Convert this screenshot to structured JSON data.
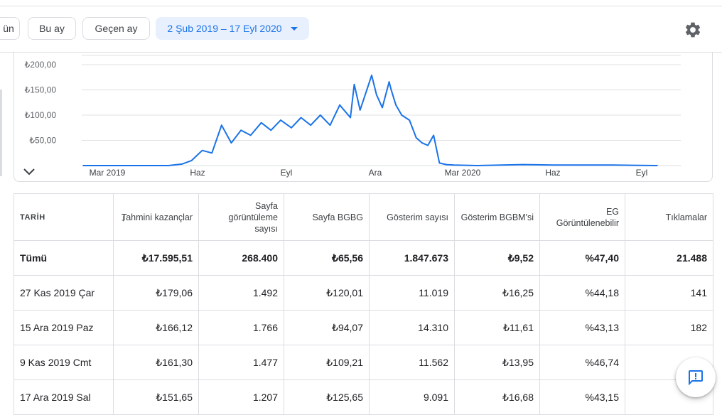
{
  "toolbar": {
    "chips": [
      {
        "label": "ün",
        "selected": false
      },
      {
        "label": "Bu ay",
        "selected": false
      },
      {
        "label": "Geçen ay",
        "selected": false
      }
    ],
    "date_range": "2 Şub 2019 – 17 Eyl 2020"
  },
  "colors": {
    "accent": "#1a73e8",
    "line": "#1a73e8",
    "grid": "#e0e0e0",
    "selected_chip_bg": "#e8f0fe"
  },
  "icons": {
    "settings": "gear-icon",
    "expand": "chevron-down-icon",
    "feedback": "feedback-icon",
    "sort": "arrow-down-icon"
  },
  "chart_data": {
    "type": "line",
    "y_ticks": [
      "₺200,00",
      "₺150,00",
      "₺100,00",
      "₺50,00"
    ],
    "x_ticks": [
      "Mar 2019",
      "Haz",
      "Eyl",
      "Ara",
      "Mar 2020",
      "Haz",
      "Eyl"
    ],
    "ylim": [
      0,
      200
    ],
    "grid": true,
    "series": [
      {
        "x": [
          "2019-02-02",
          "2019-03-01",
          "2019-04-15",
          "2019-05-01",
          "2019-05-15",
          "2019-05-25",
          "2019-06-05",
          "2019-06-15",
          "2019-06-25",
          "2019-07-05",
          "2019-07-15",
          "2019-07-25",
          "2019-08-05",
          "2019-08-15",
          "2019-08-25",
          "2019-09-05",
          "2019-09-15",
          "2019-09-25",
          "2019-10-05",
          "2019-10-15",
          "2019-10-25",
          "2019-11-05",
          "2019-11-09",
          "2019-11-15",
          "2019-11-22",
          "2019-11-27",
          "2019-12-02",
          "2019-12-08",
          "2019-12-15",
          "2019-12-17",
          "2019-12-22",
          "2019-12-28",
          "2020-01-05",
          "2020-01-12",
          "2020-01-18",
          "2020-01-24",
          "2020-01-30",
          "2020-02-05",
          "2020-02-12",
          "2020-02-20",
          "2020-03-15",
          "2020-05-01",
          "2020-06-01",
          "2020-07-01",
          "2020-08-01",
          "2020-09-17"
        ],
        "values": [
          0,
          0,
          0,
          0,
          3,
          10,
          30,
          25,
          80,
          45,
          70,
          60,
          85,
          70,
          90,
          75,
          95,
          80,
          100,
          80,
          120,
          95,
          161,
          110,
          150,
          179,
          140,
          115,
          166,
          151,
          120,
          100,
          90,
          55,
          45,
          40,
          60,
          5,
          2,
          1,
          0,
          2,
          1,
          1,
          1,
          0
        ]
      }
    ]
  },
  "table": {
    "columns": [
      {
        "label": "TARİH"
      },
      {
        "label": "Tahmini kazançlar"
      },
      {
        "label": "Sayfa görüntüleme sayısı"
      },
      {
        "label": "Sayfa BGBG"
      },
      {
        "label": "Gösterim sayısı"
      },
      {
        "label": "Gösterim BGBM'si"
      },
      {
        "label": "EG Görüntülenebilir"
      },
      {
        "label": "Tıklamalar"
      }
    ],
    "total": [
      "Tümü",
      "₺17.595,51",
      "268.400",
      "₺65,56",
      "1.847.673",
      "₺9,52",
      "%47,40",
      "21.488"
    ],
    "rows": [
      [
        "27 Kas 2019 Çar",
        "₺179,06",
        "1.492",
        "₺120,01",
        "11.019",
        "₺16,25",
        "%44,18",
        "141"
      ],
      [
        "15 Ara 2019 Paz",
        "₺166,12",
        "1.766",
        "₺94,07",
        "14.310",
        "₺11,61",
        "%43,13",
        "182"
      ],
      [
        "9 Kas 2019 Cmt",
        "₺161,30",
        "1.477",
        "₺109,21",
        "11.562",
        "₺13,95",
        "%46,74",
        ""
      ],
      [
        "17 Ara 2019 Sal",
        "₺151,65",
        "1.207",
        "₺125,65",
        "9.091",
        "₺16,68",
        "%43,15",
        ""
      ]
    ]
  }
}
